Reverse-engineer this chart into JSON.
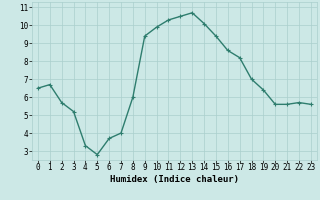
{
  "x": [
    0,
    1,
    2,
    3,
    4,
    5,
    6,
    7,
    8,
    9,
    10,
    11,
    12,
    13,
    14,
    15,
    16,
    17,
    18,
    19,
    20,
    21,
    22,
    23
  ],
  "y": [
    6.5,
    6.7,
    5.7,
    5.2,
    3.3,
    2.8,
    3.7,
    4.0,
    6.0,
    9.4,
    9.9,
    10.3,
    10.5,
    10.7,
    10.1,
    9.4,
    8.6,
    8.2,
    7.0,
    6.4,
    5.6,
    5.6,
    5.7,
    5.6
  ],
  "line_color": "#2e7d6e",
  "marker": "+",
  "markersize": 3,
  "linewidth": 1.0,
  "markeredgewidth": 0.8,
  "bg_color": "#cce8e6",
  "grid_color": "#aacfcd",
  "xlabel": "Humidex (Indice chaleur)",
  "xlim": [
    -0.5,
    23.5
  ],
  "ylim": [
    2.5,
    11.3
  ],
  "xticks": [
    0,
    1,
    2,
    3,
    4,
    5,
    6,
    7,
    8,
    9,
    10,
    11,
    12,
    13,
    14,
    15,
    16,
    17,
    18,
    19,
    20,
    21,
    22,
    23
  ],
  "yticks": [
    3,
    4,
    5,
    6,
    7,
    8,
    9,
    10,
    11
  ],
  "xlabel_fontsize": 6.5,
  "tick_fontsize": 5.5
}
